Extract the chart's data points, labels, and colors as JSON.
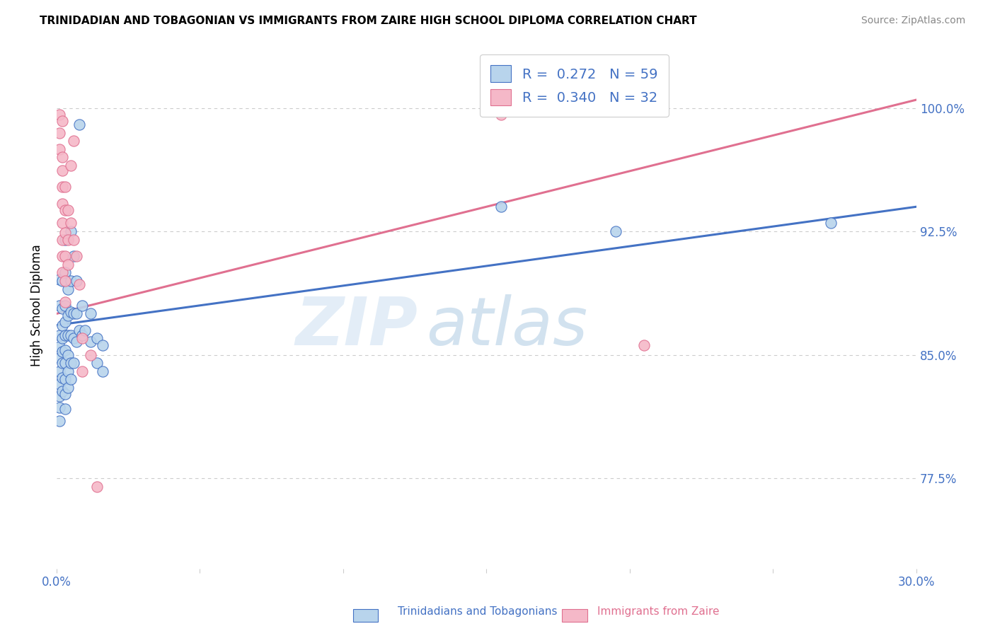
{
  "title": "TRINIDADIAN AND TOBAGONIAN VS IMMIGRANTS FROM ZAIRE HIGH SCHOOL DIPLOMA CORRELATION CHART",
  "source": "Source: ZipAtlas.com",
  "ylabel": "High School Diploma",
  "ytick_labels": [
    "77.5%",
    "85.0%",
    "92.5%",
    "100.0%"
  ],
  "ytick_values": [
    0.775,
    0.85,
    0.925,
    1.0
  ],
  "xlim": [
    0.0,
    0.3
  ],
  "ylim": [
    0.72,
    1.04
  ],
  "color_blue": "#b8d4ec",
  "color_pink": "#f5b8c8",
  "line_color_blue": "#4472c4",
  "line_color_pink": "#e07090",
  "watermark_zip": "ZIP",
  "watermark_atlas": "atlas",
  "blue_scatter": [
    [
      0.001,
      0.896
    ],
    [
      0.001,
      0.88
    ],
    [
      0.001,
      0.862
    ],
    [
      0.001,
      0.855
    ],
    [
      0.001,
      0.848
    ],
    [
      0.001,
      0.84
    ],
    [
      0.001,
      0.832
    ],
    [
      0.001,
      0.825
    ],
    [
      0.001,
      0.818
    ],
    [
      0.001,
      0.81
    ],
    [
      0.002,
      0.895
    ],
    [
      0.002,
      0.878
    ],
    [
      0.002,
      0.868
    ],
    [
      0.002,
      0.86
    ],
    [
      0.002,
      0.852
    ],
    [
      0.002,
      0.845
    ],
    [
      0.002,
      0.836
    ],
    [
      0.002,
      0.828
    ],
    [
      0.003,
      0.92
    ],
    [
      0.003,
      0.9
    ],
    [
      0.003,
      0.88
    ],
    [
      0.003,
      0.87
    ],
    [
      0.003,
      0.862
    ],
    [
      0.003,
      0.853
    ],
    [
      0.003,
      0.845
    ],
    [
      0.003,
      0.835
    ],
    [
      0.003,
      0.826
    ],
    [
      0.003,
      0.817
    ],
    [
      0.004,
      0.89
    ],
    [
      0.004,
      0.874
    ],
    [
      0.004,
      0.862
    ],
    [
      0.004,
      0.85
    ],
    [
      0.004,
      0.84
    ],
    [
      0.004,
      0.83
    ],
    [
      0.005,
      0.925
    ],
    [
      0.005,
      0.895
    ],
    [
      0.005,
      0.876
    ],
    [
      0.005,
      0.862
    ],
    [
      0.005,
      0.845
    ],
    [
      0.005,
      0.835
    ],
    [
      0.006,
      0.91
    ],
    [
      0.006,
      0.875
    ],
    [
      0.006,
      0.86
    ],
    [
      0.006,
      0.845
    ],
    [
      0.007,
      0.895
    ],
    [
      0.007,
      0.875
    ],
    [
      0.007,
      0.858
    ],
    [
      0.008,
      0.99
    ],
    [
      0.008,
      0.865
    ],
    [
      0.009,
      0.88
    ],
    [
      0.009,
      0.862
    ],
    [
      0.01,
      0.865
    ],
    [
      0.012,
      0.875
    ],
    [
      0.012,
      0.858
    ],
    [
      0.014,
      0.86
    ],
    [
      0.014,
      0.845
    ],
    [
      0.016,
      0.856
    ],
    [
      0.016,
      0.84
    ],
    [
      0.155,
      0.94
    ],
    [
      0.195,
      0.925
    ],
    [
      0.27,
      0.93
    ]
  ],
  "pink_scatter": [
    [
      0.001,
      0.996
    ],
    [
      0.001,
      0.985
    ],
    [
      0.001,
      0.975
    ],
    [
      0.002,
      0.992
    ],
    [
      0.002,
      0.97
    ],
    [
      0.002,
      0.962
    ],
    [
      0.002,
      0.952
    ],
    [
      0.002,
      0.942
    ],
    [
      0.002,
      0.93
    ],
    [
      0.002,
      0.92
    ],
    [
      0.002,
      0.91
    ],
    [
      0.002,
      0.9
    ],
    [
      0.003,
      0.952
    ],
    [
      0.003,
      0.938
    ],
    [
      0.003,
      0.924
    ],
    [
      0.003,
      0.91
    ],
    [
      0.003,
      0.895
    ],
    [
      0.003,
      0.882
    ],
    [
      0.004,
      0.938
    ],
    [
      0.004,
      0.92
    ],
    [
      0.004,
      0.905
    ],
    [
      0.005,
      0.965
    ],
    [
      0.005,
      0.93
    ],
    [
      0.006,
      0.98
    ],
    [
      0.006,
      0.92
    ],
    [
      0.007,
      0.91
    ],
    [
      0.008,
      0.893
    ],
    [
      0.009,
      0.86
    ],
    [
      0.009,
      0.84
    ],
    [
      0.012,
      0.85
    ],
    [
      0.014,
      0.77
    ],
    [
      0.155,
      0.996
    ],
    [
      0.205,
      0.856
    ]
  ],
  "blue_line": {
    "x0": 0.0,
    "y0": 0.868,
    "x1": 0.3,
    "y1": 0.94
  },
  "pink_line": {
    "x0": 0.0,
    "y0": 0.875,
    "x1": 0.3,
    "y1": 1.005
  }
}
